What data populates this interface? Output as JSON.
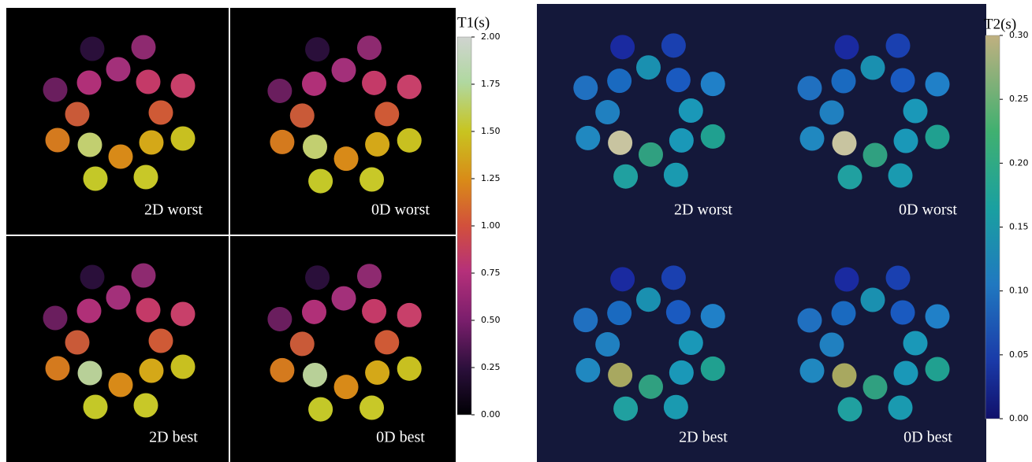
{
  "t1": {
    "title": "T1(s)",
    "lim": [
      0,
      2
    ],
    "ticks": [
      {
        "value": 0,
        "label": "0.00"
      },
      {
        "value": 0.25,
        "label": "0.25"
      },
      {
        "value": 0.5,
        "label": "0.50"
      },
      {
        "value": 0.75,
        "label": "0.75"
      },
      {
        "value": 1,
        "label": "1.00"
      },
      {
        "value": 1.25,
        "label": "1.25"
      },
      {
        "value": 1.5,
        "label": "1.50"
      },
      {
        "value": 1.75,
        "label": "1.75"
      },
      {
        "value": 2,
        "label": "2.00"
      }
    ],
    "panels": [
      {
        "label": "2D worst"
      },
      {
        "label": "0D worst"
      },
      {
        "label": "2D best"
      },
      {
        "label": "0D best"
      }
    ]
  },
  "t2": {
    "title": "T2(s)",
    "lim": [
      0,
      0.3
    ],
    "ticks": [
      {
        "value": 0,
        "label": "0.00"
      },
      {
        "value": 0.05,
        "label": "0.05"
      },
      {
        "value": 0.1,
        "label": "0.10"
      },
      {
        "value": 0.15,
        "label": "0.15"
      },
      {
        "value": 0.2,
        "label": "0.20"
      },
      {
        "value": 0.25,
        "label": "0.25"
      },
      {
        "value": 0.3,
        "label": "0.30"
      }
    ],
    "panels": [
      {
        "label": "2D worst"
      },
      {
        "label": "0D worst"
      },
      {
        "label": "2D best"
      },
      {
        "label": "0D best"
      }
    ]
  }
}
